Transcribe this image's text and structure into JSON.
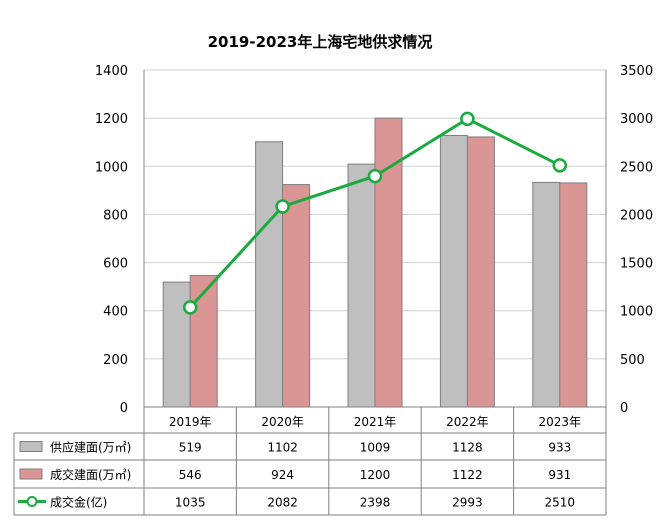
{
  "chart_data": {
    "type": "bar",
    "title": "2019-2023年上海宅地供求情况",
    "categories": [
      "2019年",
      "2020年",
      "2021年",
      "2022年",
      "2023年"
    ],
    "y_left": {
      "min": 0,
      "max": 1400,
      "step": 200
    },
    "y_right": {
      "min": 0,
      "max": 3500,
      "step": 500
    },
    "grid": true,
    "series": [
      {
        "name": "供应建面(万㎡)",
        "type": "bar",
        "axis": "left",
        "color": "#bfbfbf",
        "values": [
          519,
          1102,
          1009,
          1128,
          933
        ]
      },
      {
        "name": "成交建面(万㎡)",
        "type": "bar",
        "axis": "left",
        "color": "#d99694",
        "values": [
          546,
          924,
          1200,
          1122,
          931
        ]
      },
      {
        "name": "成交金(亿)",
        "type": "line",
        "axis": "right",
        "color": "#1aab40",
        "values": [
          1035,
          2082,
          2398,
          2993,
          2510
        ]
      }
    ],
    "legend": "data-table-below"
  }
}
